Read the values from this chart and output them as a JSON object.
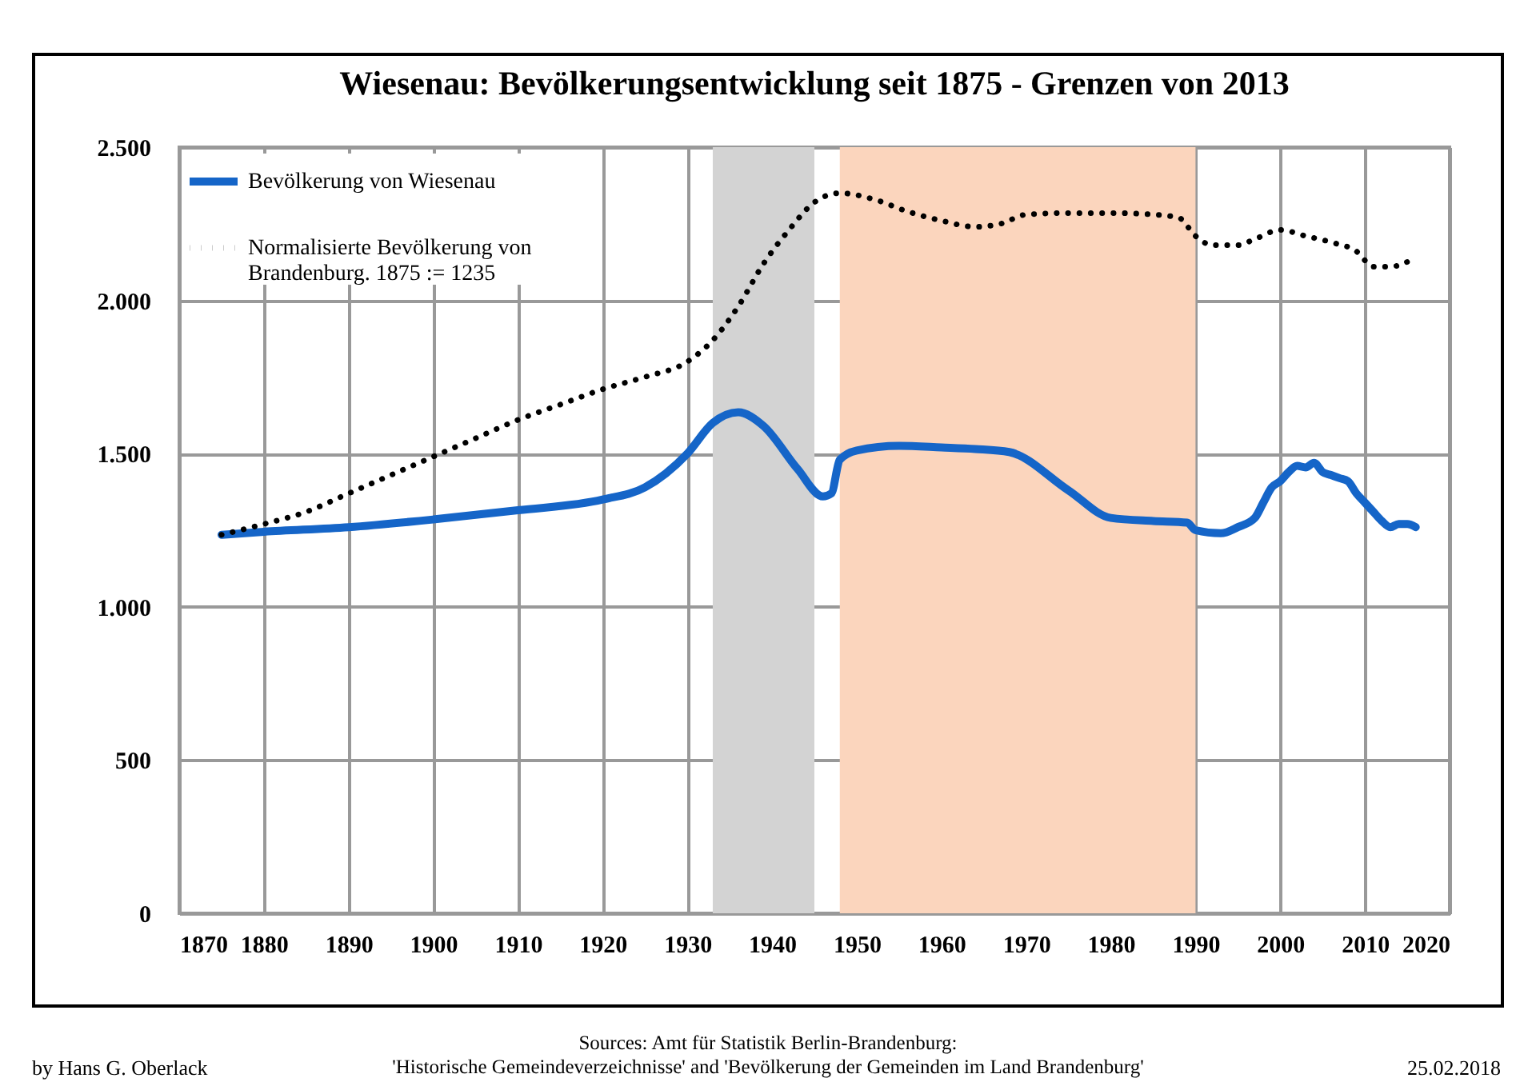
{
  "chart_data": {
    "type": "line",
    "title": "Wiesenau: Bevölkerungsentwicklung seit 1875 - Grenzen von 2013",
    "series": [
      {
        "name": "Bevölkerung von Wiesenau",
        "color": "#1565c8",
        "line_style": "solid",
        "x": [
          1875,
          1880,
          1890,
          1900,
          1910,
          1920,
          1925,
          1930,
          1933,
          1936,
          1939,
          1943,
          1946,
          1947,
          1948,
          1950,
          1955,
          1960,
          1964,
          1968,
          1975,
          1980,
          1985,
          1989,
          1990,
          1993,
          1995,
          1997,
          1998,
          1999,
          2000,
          2001,
          2002,
          2003,
          2004,
          2005,
          2006,
          2007,
          2008,
          2009,
          2010,
          2011,
          2012,
          2013,
          2014,
          2015,
          2016
        ],
        "values": [
          1235,
          1245,
          1260,
          1285,
          1315,
          1350,
          1390,
          1500,
          1600,
          1635,
          1590,
          1450,
          1360,
          1370,
          1480,
          1510,
          1525,
          1520,
          1515,
          1505,
          1380,
          1290,
          1280,
          1275,
          1250,
          1240,
          1260,
          1290,
          1340,
          1390,
          1410,
          1440,
          1460,
          1455,
          1470,
          1440,
          1430,
          1420,
          1410,
          1370,
          1340,
          1310,
          1280,
          1260,
          1270,
          1270,
          1260
        ]
      },
      {
        "name": "Normalisierte Bevölkerung von Brandenburg. 1875 := 1235",
        "color": "#000000",
        "line_style": "dotted",
        "x": [
          1875,
          1880,
          1885,
          1890,
          1895,
          1900,
          1905,
          1910,
          1915,
          1920,
          1925,
          1930,
          1933,
          1936,
          1939,
          1942,
          1945,
          1948,
          1952,
          1956,
          1960,
          1964,
          1967,
          1970,
          1975,
          1980,
          1985,
          1988,
          1990,
          1992,
          1995,
          1997,
          2000,
          2003,
          2006,
          2009,
          2011,
          2013,
          2016
        ],
        "values": [
          1235,
          1270,
          1310,
          1370,
          1430,
          1490,
          1550,
          1610,
          1660,
          1710,
          1750,
          1800,
          1870,
          1980,
          2120,
          2230,
          2320,
          2350,
          2330,
          2290,
          2260,
          2240,
          2250,
          2280,
          2285,
          2285,
          2280,
          2270,
          2210,
          2180,
          2180,
          2200,
          2230,
          2210,
          2190,
          2160,
          2110,
          2110,
          2140
        ]
      }
    ],
    "xlim": [
      1870,
      2020
    ],
    "xticks": [
      1870,
      1880,
      1890,
      1900,
      1910,
      1920,
      1930,
      1940,
      1950,
      1960,
      1970,
      1980,
      1990,
      2000,
      2010,
      2020
    ],
    "ylim": [
      0,
      2500
    ],
    "yticks": [
      0,
      {
        "value": 500,
        "label": "500"
      },
      {
        "value": 1000,
        "label": "1.000"
      },
      {
        "value": 1500,
        "label": "1.500"
      },
      {
        "value": 2000,
        "label": "2.000"
      },
      {
        "value": 2500,
        "label": "2.500"
      }
    ],
    "bands": [
      {
        "axis": "x",
        "from": 1933,
        "to": 1945,
        "color": "#d3d3d3"
      },
      {
        "axis": "x",
        "from": 1948,
        "to": 1990,
        "color": "#fbd5bd"
      }
    ],
    "grid": true,
    "legend": "top left",
    "annotations": [
      "Sources: Amt für Statistik Berlin-Brandenburg:\n'Historische Gemeindeverzeichnisse' and 'Bevölkerung der Gemeinden im Land Brandenburg'",
      "by Hans G. Oberlack",
      "25.02.2018"
    ]
  }
}
